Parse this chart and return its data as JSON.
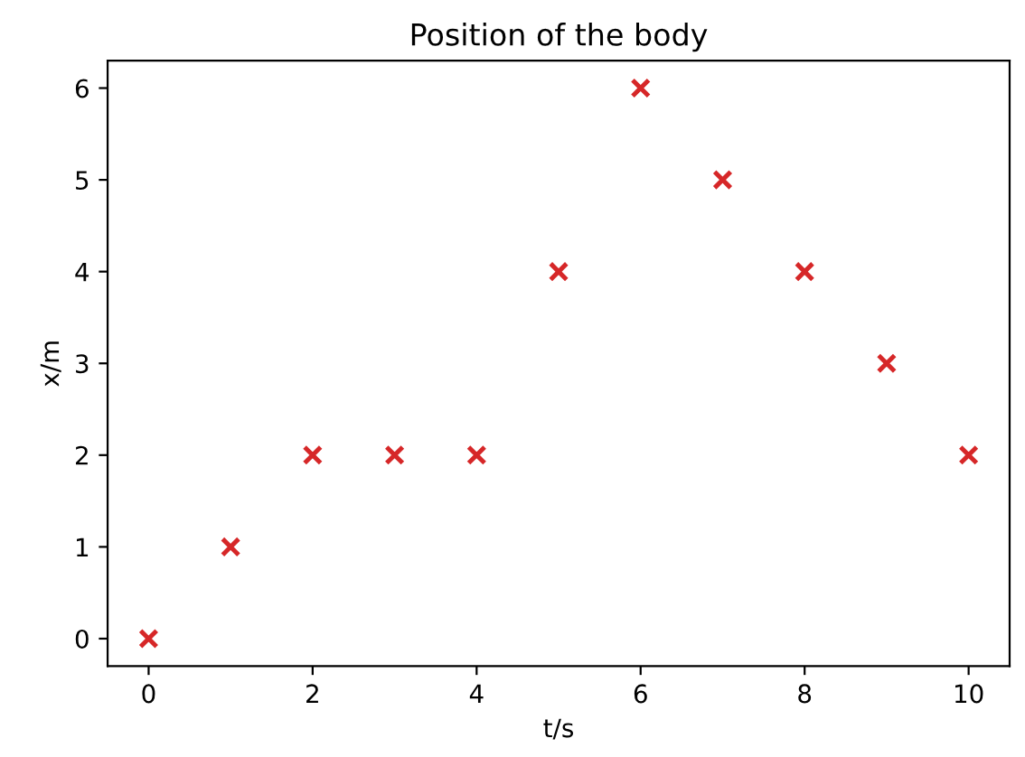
{
  "chart_data": {
    "type": "scatter",
    "title": "Position of the body",
    "xlabel": "t/s",
    "ylabel": "x/m",
    "x": [
      0,
      1,
      2,
      3,
      4,
      5,
      6,
      7,
      8,
      9,
      10
    ],
    "series": [
      {
        "color": "#d62728",
        "values": [
          0,
          1,
          2,
          2,
          2,
          4,
          6,
          5,
          4,
          3,
          2
        ]
      }
    ],
    "marker": "cross",
    "xlim": [
      -0.5,
      10.5
    ],
    "ylim": [
      -0.3,
      6.3
    ],
    "xticks": [
      0,
      2,
      4,
      6,
      8,
      10
    ],
    "yticks": [
      0,
      1,
      2,
      3,
      4,
      5,
      6
    ],
    "grid": false,
    "legend": false
  }
}
